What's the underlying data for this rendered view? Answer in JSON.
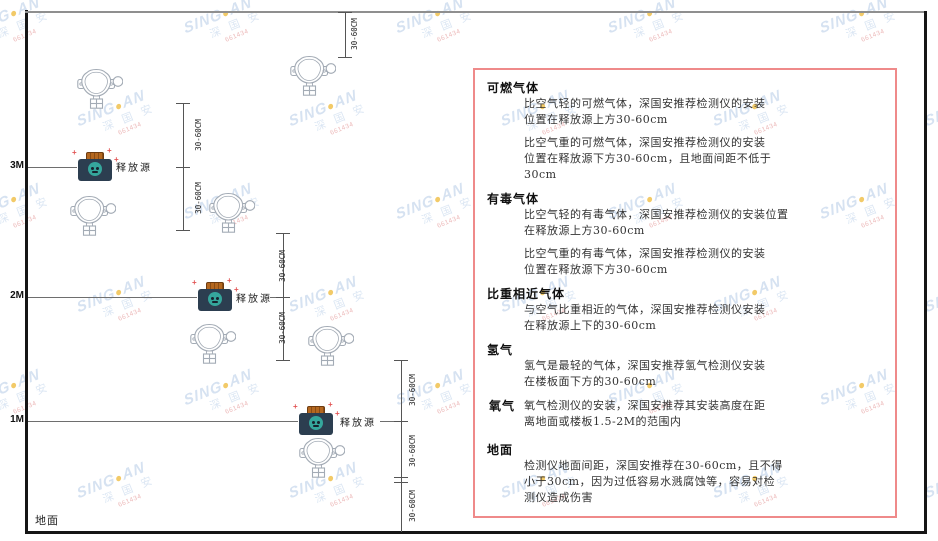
{
  "watermark": {
    "brand_prefix": "SING",
    "brand_dot": "●",
    "brand_suffix": "AN",
    "cn": "深 国 安",
    "code": "661434"
  },
  "diagram": {
    "levels": [
      {
        "label": "3M"
      },
      {
        "label": "2M"
      },
      {
        "label": "1M"
      }
    ],
    "ground_label": "地面",
    "source_label": "释放源",
    "dim_label": "30-60CM"
  },
  "panel": {
    "sections": [
      {
        "heading": "可燃气体",
        "paragraphs": [
          "比空气轻的可燃气体，深国安推荐检测仪的安装\n位置在释放源上方30-60cm",
          "比空气重的可燃气体，深国安推荐检测仪的安装\n位置在释放源下方30-60cm，且地面间距不低于\n30cm"
        ]
      },
      {
        "heading": "有毒气体",
        "paragraphs": [
          "比空气轻的有毒气体，深国安推荐检测仪的安装位置\n在释放源上方30-60cm",
          "比空气重的有毒气体，深国安推荐检测仪的安装\n位置在释放源下方30-60cm"
        ]
      },
      {
        "heading": "比重相近气体",
        "paragraphs": [
          "与空气比重相近的气体，深国安推荐检测仪安装\n在释放源上下的30-60cm"
        ]
      },
      {
        "heading": "氢气",
        "paragraphs": [
          "氢气是最轻的气体，深国安推荐氢气检测仪安装\n在楼板面下方的30-60cm"
        ]
      },
      {
        "heading": "氧气",
        "paragraphs": [
          "氧气检测仪的安装，深国安推荐其安装高度在距\n离地面或楼板1.5-2M的范围内"
        ]
      },
      {
        "heading": "地面",
        "paragraphs": [
          "检测仪地面间距，深国安推荐在30-60cm，且不得\n小于30cm，因为过低容易水溅腐蚀等，容易对检\n测仪造成伤害"
        ]
      }
    ]
  }
}
